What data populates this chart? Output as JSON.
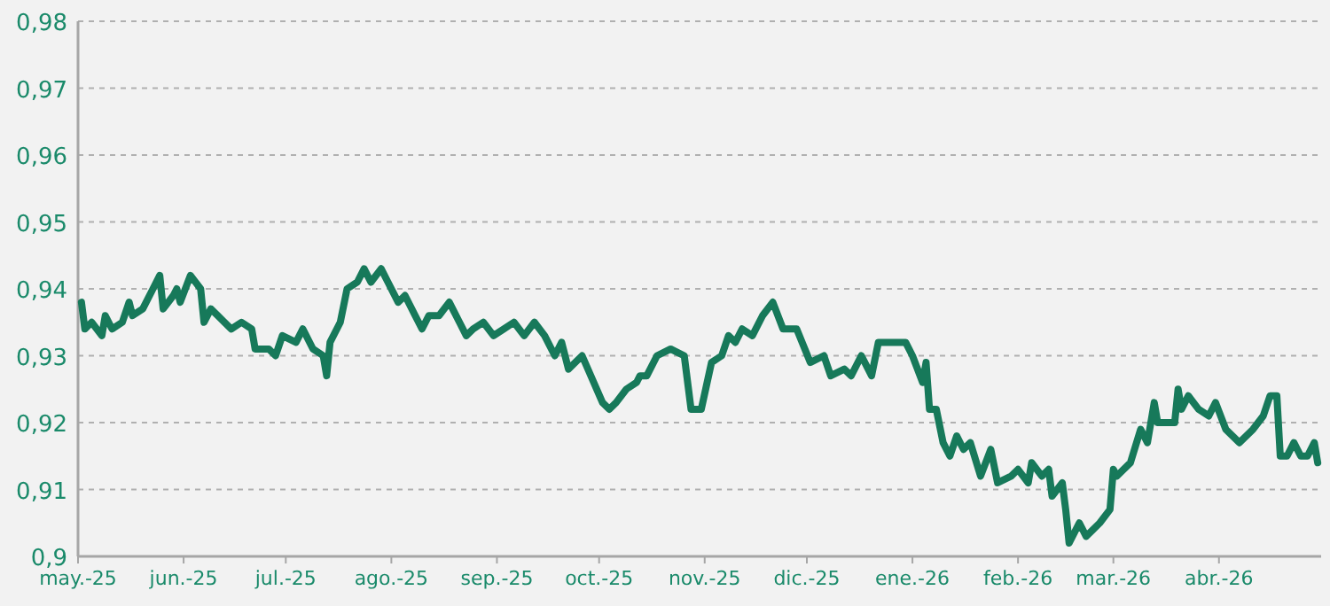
{
  "chart_data": {
    "type": "line",
    "xlim": [
      "2025-05-01",
      "2026-05-01"
    ],
    "xticks": [
      {
        "value": "2025-05-01",
        "label": "may.-25"
      },
      {
        "value": "2025-06-01",
        "label": "jun.-25"
      },
      {
        "value": "2025-07-01",
        "label": "jul.-25"
      },
      {
        "value": "2025-08-01",
        "label": "ago.-25"
      },
      {
        "value": "2025-09-01",
        "label": "sep.-25"
      },
      {
        "value": "2025-10-01",
        "label": "oct.-25"
      },
      {
        "value": "2025-11-01",
        "label": "nov.-25"
      },
      {
        "value": "2025-12-01",
        "label": "dic.-25"
      },
      {
        "value": "2026-01-01",
        "label": "ene.-26"
      },
      {
        "value": "2026-02-01",
        "label": "feb.-26"
      },
      {
        "value": "2026-03-01",
        "label": "mar.-26"
      },
      {
        "value": "2026-04-01",
        "label": "abr.-26"
      }
    ],
    "ylim": [
      0.9,
      0.98
    ],
    "yticks": [
      {
        "value": 0.9,
        "label": "0,9"
      },
      {
        "value": 0.91,
        "label": "0,91"
      },
      {
        "value": 0.92,
        "label": "0,92"
      },
      {
        "value": 0.93,
        "label": "0,93"
      },
      {
        "value": 0.94,
        "label": "0,94"
      },
      {
        "value": 0.95,
        "label": "0,95"
      },
      {
        "value": 0.96,
        "label": "0,96"
      },
      {
        "value": 0.97,
        "label": "0,97"
      },
      {
        "value": 0.98,
        "label": "0,98"
      }
    ],
    "grid": "y",
    "marker": "none",
    "line_style": "solid",
    "x": [
      "2025-05-02",
      "2025-05-03",
      "2025-05-05",
      "2025-05-08",
      "2025-05-09",
      "2025-05-11",
      "2025-05-14",
      "2025-05-16",
      "2025-05-17",
      "2025-05-20",
      "2025-05-23",
      "2025-05-25",
      "2025-05-26",
      "2025-05-29",
      "2025-05-30",
      "2025-05-31",
      "2025-06-03",
      "2025-06-06",
      "2025-06-07",
      "2025-06-09",
      "2025-06-11",
      "2025-06-15",
      "2025-06-18",
      "2025-06-21",
      "2025-06-22",
      "2025-06-26",
      "2025-06-28",
      "2025-06-30",
      "2025-07-04",
      "2025-07-06",
      "2025-07-09",
      "2025-07-12",
      "2025-07-13",
      "2025-07-14",
      "2025-07-17",
      "2025-07-19",
      "2025-07-22",
      "2025-07-24",
      "2025-07-26",
      "2025-07-29",
      "2025-07-31",
      "2025-08-03",
      "2025-08-05",
      "2025-08-08",
      "2025-08-10",
      "2025-08-12",
      "2025-08-15",
      "2025-08-18",
      "2025-08-21",
      "2025-08-23",
      "2025-08-25",
      "2025-08-28",
      "2025-08-31",
      "2025-09-03",
      "2025-09-06",
      "2025-09-09",
      "2025-09-12",
      "2025-09-15",
      "2025-09-18",
      "2025-09-20",
      "2025-09-22",
      "2025-09-26",
      "2025-10-02",
      "2025-10-04",
      "2025-10-06",
      "2025-10-09",
      "2025-10-12",
      "2025-10-13",
      "2025-10-15",
      "2025-10-18",
      "2025-10-22",
      "2025-10-26",
      "2025-10-28",
      "2025-10-31",
      "2025-11-03",
      "2025-11-06",
      "2025-11-08",
      "2025-11-10",
      "2025-11-12",
      "2025-11-15",
      "2025-11-18",
      "2025-11-21",
      "2025-11-24",
      "2025-11-28",
      "2025-12-02",
      "2025-12-06",
      "2025-12-08",
      "2025-12-12",
      "2025-12-14",
      "2025-12-17",
      "2025-12-20",
      "2025-12-22",
      "2025-12-26",
      "2025-12-28",
      "2025-12-30",
      "2026-01-01",
      "2026-01-04",
      "2026-01-05",
      "2026-01-06",
      "2026-01-08",
      "2026-01-10",
      "2026-01-12",
      "2026-01-14",
      "2026-01-16",
      "2026-01-18",
      "2026-01-21",
      "2026-01-24",
      "2026-01-26",
      "2026-01-30",
      "2026-02-01",
      "2026-02-04",
      "2026-02-05",
      "2026-02-08",
      "2026-02-10",
      "2026-02-11",
      "2026-02-14",
      "2026-02-15",
      "2026-02-16",
      "2026-02-19",
      "2026-02-21",
      "2026-02-23",
      "2026-02-25",
      "2026-02-28",
      "2026-03-01",
      "2026-03-02",
      "2026-03-06",
      "2026-03-09",
      "2026-03-11",
      "2026-03-13",
      "2026-03-14",
      "2026-03-19",
      "2026-03-20",
      "2026-03-21",
      "2026-03-23",
      "2026-03-26",
      "2026-03-29",
      "2026-03-31",
      "2026-04-03",
      "2026-04-07",
      "2026-04-11",
      "2026-04-14",
      "2026-04-16",
      "2026-04-18",
      "2026-04-19",
      "2026-04-21",
      "2026-04-23",
      "2026-04-25",
      "2026-04-27",
      "2026-04-29",
      "2026-04-30"
    ],
    "series": [
      {
        "color": "#17795a",
        "values": [
          0.938,
          0.934,
          0.935,
          0.933,
          0.936,
          0.934,
          0.935,
          0.938,
          0.936,
          0.937,
          0.94,
          0.942,
          0.937,
          0.939,
          0.94,
          0.938,
          0.942,
          0.94,
          0.935,
          0.937,
          0.936,
          0.934,
          0.935,
          0.934,
          0.931,
          0.931,
          0.93,
          0.933,
          0.932,
          0.934,
          0.931,
          0.93,
          0.927,
          0.932,
          0.935,
          0.94,
          0.941,
          0.943,
          0.941,
          0.943,
          0.941,
          0.938,
          0.939,
          0.936,
          0.934,
          0.936,
          0.936,
          0.938,
          0.935,
          0.933,
          0.934,
          0.935,
          0.933,
          0.934,
          0.935,
          0.933,
          0.935,
          0.933,
          0.93,
          0.932,
          0.928,
          0.93,
          0.923,
          0.922,
          0.923,
          0.925,
          0.926,
          0.927,
          0.927,
          0.93,
          0.931,
          0.93,
          0.922,
          0.922,
          0.929,
          0.93,
          0.933,
          0.932,
          0.934,
          0.933,
          0.936,
          0.938,
          0.934,
          0.934,
          0.929,
          0.93,
          0.927,
          0.928,
          0.927,
          0.93,
          0.927,
          0.932,
          0.932,
          0.932,
          0.932,
          0.93,
          0.926,
          0.929,
          0.922,
          0.922,
          0.917,
          0.915,
          0.918,
          0.916,
          0.917,
          0.912,
          0.916,
          0.911,
          0.912,
          0.913,
          0.911,
          0.914,
          0.912,
          0.913,
          0.909,
          0.911,
          0.907,
          0.902,
          0.905,
          0.903,
          0.904,
          0.905,
          0.907,
          0.913,
          0.912,
          0.914,
          0.919,
          0.917,
          0.923,
          0.92,
          0.92,
          0.925,
          0.922,
          0.924,
          0.922,
          0.921,
          0.923,
          0.919,
          0.917,
          0.919,
          0.921,
          0.924,
          0.924,
          0.915,
          0.915,
          0.917,
          0.915,
          0.915,
          0.917,
          0.914
        ]
      }
    ]
  }
}
